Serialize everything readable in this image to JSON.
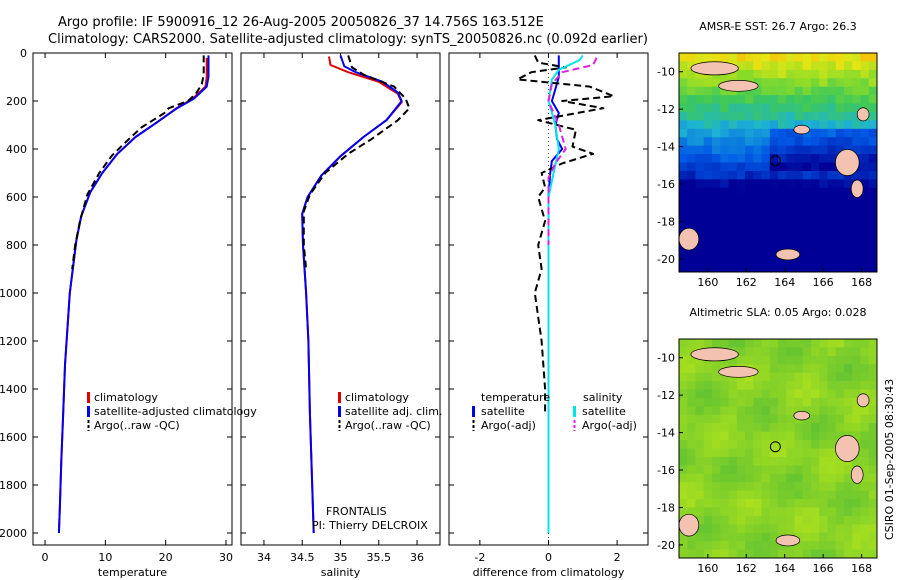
{
  "header": {
    "line1": "Argo profile: IF 5900916_12 26-Aug-2005 20050826_37 14.756S 163.512E",
    "line2": "Climatology: CARS2000. Satellite-adjusted climatology: synTS_20050826.nc (0.092d earlier)"
  },
  "colors": {
    "climatology": "#e00000",
    "satellite": "#0000ee",
    "argo": "#000000",
    "salinity_satellite": "#00e6f0",
    "salinity_argo": "#e020e0",
    "land": "#f4c2b0"
  },
  "chart_data": [
    {
      "type": "line",
      "xlabel": "temperature",
      "xlim": [
        -2,
        31
      ],
      "ylim": [
        0,
        2050
      ],
      "xticks": [
        0,
        10,
        20,
        30
      ],
      "yticks": [
        0,
        200,
        400,
        600,
        800,
        1000,
        1200,
        1400,
        1600,
        1800,
        2000
      ],
      "legend": [
        "climatology",
        "satellite-adjusted climatology",
        "Argo(..raw -QC)"
      ],
      "series": [
        {
          "name": "climatology",
          "color": "#e00000",
          "points": [
            [
              26.8,
              20
            ],
            [
              26.8,
              100
            ],
            [
              26.6,
              140
            ],
            [
              24.5,
              190
            ],
            [
              21.8,
              230
            ],
            [
              18.5,
              290
            ],
            [
              15,
              350
            ],
            [
              12,
              420
            ],
            [
              9.5,
              500
            ],
            [
              7.5,
              580
            ],
            [
              6,
              680
            ],
            [
              5.2,
              780
            ],
            [
              4.6,
              900
            ],
            [
              4.1,
              1000
            ],
            [
              3.7,
              1150
            ],
            [
              3.3,
              1300
            ],
            [
              3,
              1500
            ],
            [
              2.7,
              1700
            ],
            [
              2.45,
              1900
            ],
            [
              2.3,
              2000
            ]
          ]
        },
        {
          "name": "satellite-adjusted climatology",
          "color": "#0000ee",
          "points": [
            [
              27.1,
              10
            ],
            [
              27.1,
              100
            ],
            [
              26.8,
              140
            ],
            [
              24.7,
              190
            ],
            [
              21.9,
              230
            ],
            [
              18.5,
              290
            ],
            [
              15,
              350
            ],
            [
              12,
              420
            ],
            [
              9.5,
              500
            ],
            [
              7.5,
              580
            ],
            [
              6,
              680
            ],
            [
              5.2,
              780
            ],
            [
              4.6,
              900
            ],
            [
              4.1,
              1000
            ],
            [
              3.7,
              1150
            ],
            [
              3.3,
              1300
            ],
            [
              3,
              1500
            ],
            [
              2.7,
              1700
            ],
            [
              2.45,
              1900
            ],
            [
              2.3,
              2000
            ]
          ]
        },
        {
          "name": "Argo(..raw -QC)",
          "color": "#000000",
          "dash": true,
          "points": [
            [
              26.3,
              10
            ],
            [
              26.3,
              90
            ],
            [
              26,
              130
            ],
            [
              25,
              170
            ],
            [
              23.7,
              200
            ],
            [
              20.5,
              230
            ],
            [
              19.8,
              250
            ],
            [
              16,
              310
            ],
            [
              13,
              380
            ],
            [
              11,
              430
            ],
            [
              9,
              500
            ],
            [
              7,
              590
            ],
            [
              5.8,
              700
            ],
            [
              5,
              800
            ],
            [
              4.5,
              900
            ]
          ]
        }
      ]
    },
    {
      "type": "line",
      "xlabel": "salinity",
      "xlim": [
        33.7,
        36.3
      ],
      "ylim": [
        0,
        2050
      ],
      "xticks": [
        34,
        34.5,
        35,
        35.5,
        36
      ],
      "legend": [
        "climatology",
        "satellite adj. clim.",
        "Argo(..raw -QC)"
      ],
      "series": [
        {
          "name": "climatology",
          "color": "#e00000",
          "points": [
            [
              34.85,
              15
            ],
            [
              34.87,
              50
            ],
            [
              35.1,
              80
            ],
            [
              35.5,
              120
            ],
            [
              35.75,
              170
            ],
            [
              35.8,
              205
            ],
            [
              35.6,
              280
            ],
            [
              35.3,
              350
            ],
            [
              35,
              430
            ],
            [
              34.75,
              510
            ],
            [
              34.57,
              600
            ],
            [
              34.5,
              670
            ],
            [
              34.51,
              800
            ],
            [
              34.55,
              1000
            ],
            [
              34.58,
              1200
            ],
            [
              34.6,
              1500
            ],
            [
              34.63,
              1800
            ],
            [
              34.65,
              2000
            ]
          ]
        },
        {
          "name": "satellite adj. clim.",
          "color": "#0000ee",
          "points": [
            [
              35,
              10
            ],
            [
              35.05,
              55
            ],
            [
              35.2,
              80
            ],
            [
              35.55,
              120
            ],
            [
              35.75,
              165
            ],
            [
              35.8,
              200
            ],
            [
              35.6,
              280
            ],
            [
              35.3,
              350
            ],
            [
              35,
              430
            ],
            [
              34.75,
              510
            ],
            [
              34.57,
              600
            ],
            [
              34.5,
              670
            ],
            [
              34.51,
              800
            ],
            [
              34.55,
              1000
            ],
            [
              34.58,
              1200
            ],
            [
              34.6,
              1500
            ],
            [
              34.63,
              1800
            ],
            [
              34.65,
              2000
            ]
          ]
        },
        {
          "name": "Argo(..raw -QC)",
          "color": "#000000",
          "dash": true,
          "points": [
            [
              35.1,
              10
            ],
            [
              35.15,
              60
            ],
            [
              35.3,
              90
            ],
            [
              35.7,
              140
            ],
            [
              35.85,
              190
            ],
            [
              35.9,
              230
            ],
            [
              35.75,
              280
            ],
            [
              35.4,
              360
            ],
            [
              35.1,
              420
            ],
            [
              34.8,
              500
            ],
            [
              34.6,
              590
            ],
            [
              34.52,
              660
            ],
            [
              34.52,
              800
            ],
            [
              34.55,
              900
            ]
          ]
        }
      ]
    },
    {
      "type": "line",
      "xlabel": "difference from climatology",
      "xlim": [
        -2.9,
        2.9
      ],
      "ylim": [
        0,
        2050
      ],
      "xticks": [
        -2,
        0,
        2
      ],
      "legend": [
        "temperature",
        "satellite",
        "Argo(-adj)",
        "salinity",
        "satellite",
        "Argo(-adj)"
      ],
      "series": [
        {
          "name": "satellite",
          "color": "#0000ee",
          "points": [
            [
              0.3,
              10
            ],
            [
              0.3,
              100
            ],
            [
              0.2,
              150
            ],
            [
              0.1,
              200
            ],
            [
              0.3,
              250
            ],
            [
              0.2,
              300
            ],
            [
              0.25,
              360
            ],
            [
              0.4,
              400
            ],
            [
              0.1,
              450
            ],
            [
              0.05,
              500
            ],
            [
              0,
              600
            ],
            [
              0,
              1000
            ],
            [
              0,
              1500
            ],
            [
              0,
              2000
            ]
          ]
        },
        {
          "name": "Argo(-adj)",
          "color": "#000000",
          "dash": true,
          "points": [
            [
              -0.4,
              10
            ],
            [
              -0.3,
              40
            ],
            [
              0.5,
              60
            ],
            [
              -0.5,
              80
            ],
            [
              -0.9,
              110
            ],
            [
              1.2,
              140
            ],
            [
              1.9,
              180
            ],
            [
              0.4,
              200
            ],
            [
              1.6,
              230
            ],
            [
              -0.3,
              280
            ],
            [
              0.8,
              320
            ],
            [
              0.7,
              390
            ],
            [
              1.3,
              420
            ],
            [
              0.4,
              460
            ],
            [
              -0.2,
              500
            ],
            [
              -0.1,
              560
            ],
            [
              -0.3,
              600
            ],
            [
              -0.2,
              650
            ],
            [
              -0.1,
              700
            ],
            [
              -0.3,
              800
            ],
            [
              -0.2,
              900
            ],
            [
              -0.4,
              1000
            ],
            [
              -0.2,
              1200
            ],
            [
              -0.1,
              1400
            ],
            [
              -0.1,
              1500
            ]
          ]
        },
        {
          "name": "satellite",
          "color": "#00e6f0",
          "points": [
            [
              1,
              10
            ],
            [
              0.9,
              30
            ],
            [
              0.6,
              50
            ],
            [
              0.3,
              70
            ],
            [
              0.1,
              110
            ],
            [
              0,
              200
            ],
            [
              0.2,
              300
            ],
            [
              0.3,
              400
            ],
            [
              0.15,
              500
            ],
            [
              0,
              600
            ],
            [
              0,
              1000
            ],
            [
              0,
              1500
            ],
            [
              0,
              2000
            ]
          ]
        },
        {
          "name": "Argo(-adj)",
          "color": "#e020e0",
          "dash": true,
          "points": [
            [
              1.4,
              20
            ],
            [
              1.3,
              50
            ],
            [
              0.4,
              80
            ],
            [
              0.1,
              130
            ],
            [
              0,
              200
            ],
            [
              0.3,
              300
            ],
            [
              0.5,
              400
            ],
            [
              0.2,
              460
            ],
            [
              0,
              520
            ],
            [
              0,
              800
            ]
          ]
        }
      ]
    }
  ],
  "credits": {
    "line1": "FRONTALIS",
    "line2": "PI: Thierry DELCROIX"
  },
  "maps": [
    {
      "title": "AMSR-E SST: 26.7  Argo: 26.3",
      "xticks": [
        "160",
        "162",
        "164",
        "166",
        "168"
      ],
      "yticks": [
        "-10",
        "-12",
        "-14",
        "-16",
        "-18",
        "-20"
      ]
    },
    {
      "title": "Altimetric SLA: 0.05  Argo: 0.028",
      "xticks": [
        "160",
        "162",
        "164",
        "166",
        "168"
      ],
      "yticks": [
        "-10",
        "-12",
        "-14",
        "-16",
        "-18",
        "-20"
      ]
    }
  ],
  "footer": "CSIRO 01-Sep-2005 08:30:43"
}
